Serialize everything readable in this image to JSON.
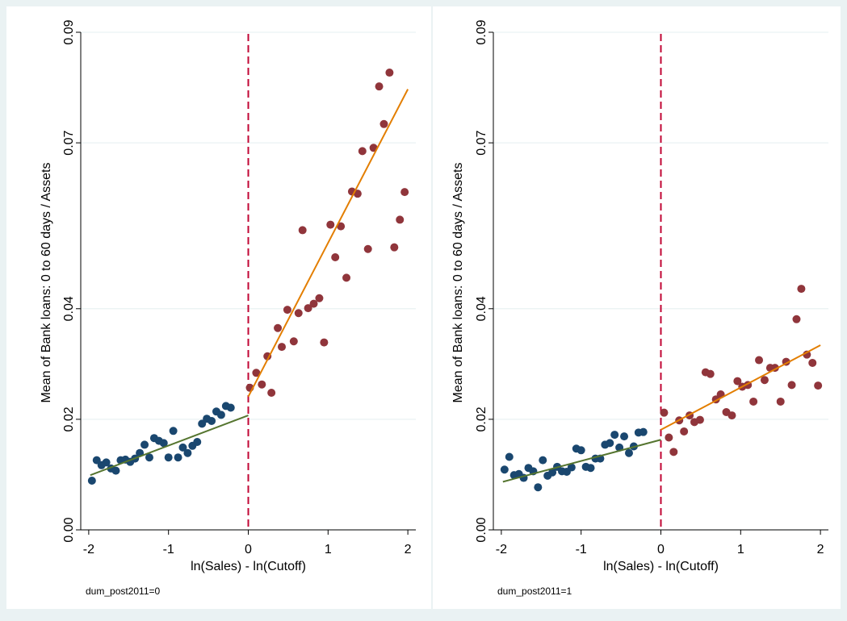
{
  "chart_data": [
    {
      "type": "scatter",
      "panel_label": "dum_post2011=0",
      "xlabel": "ln(Sales) - ln(Cutoff)",
      "ylabel": "Mean of Bank loans: 0 to 60 days / Assets",
      "xlim": [
        -2.1,
        2.1
      ],
      "ylim": [
        0,
        0.09
      ],
      "xticks": [
        -2,
        -1,
        0,
        1,
        2
      ],
      "yticks": [
        0,
        0.02,
        0.04,
        0.07,
        0.09
      ],
      "ytick_labels": [
        "0.00",
        "0.02",
        "0.04",
        "0.07",
        "0.09"
      ],
      "cutoff_x": 0,
      "grid": true,
      "colors": {
        "left": "#1a476f",
        "right": "#90353b",
        "left_fit": "#55752f",
        "right_fit": "#e37e00",
        "cutoff": "#c10534"
      },
      "series": [
        {
          "side": "left",
          "points": [
            [
              -1.96,
              0.0089
            ],
            [
              -1.9,
              0.0126
            ],
            [
              -1.84,
              0.0117
            ],
            [
              -1.78,
              0.0122
            ],
            [
              -1.72,
              0.0111
            ],
            [
              -1.66,
              0.0107
            ],
            [
              -1.6,
              0.0126
            ],
            [
              -1.54,
              0.0127
            ],
            [
              -1.48,
              0.0123
            ],
            [
              -1.42,
              0.0129
            ],
            [
              -1.36,
              0.0139
            ],
            [
              -1.3,
              0.0154
            ],
            [
              -1.24,
              0.0131
            ],
            [
              -1.18,
              0.0166
            ],
            [
              -1.12,
              0.0161
            ],
            [
              -1.06,
              0.0157
            ],
            [
              -1.0,
              0.0131
            ],
            [
              -0.94,
              0.0179
            ],
            [
              -0.88,
              0.0131
            ],
            [
              -0.82,
              0.0149
            ],
            [
              -0.76,
              0.0139
            ],
            [
              -0.7,
              0.0152
            ],
            [
              -0.64,
              0.0159
            ],
            [
              -0.58,
              0.0192
            ],
            [
              -0.52,
              0.0201
            ],
            [
              -0.46,
              0.0197
            ],
            [
              -0.4,
              0.0214
            ],
            [
              -0.34,
              0.0208
            ],
            [
              -0.28,
              0.0224
            ],
            [
              -0.22,
              0.0221
            ]
          ],
          "fit": [
            [
              -1.98,
              0.0099
            ],
            [
              0,
              0.0207
            ]
          ]
        },
        {
          "side": "right",
          "points": [
            [
              0.02,
              0.0257
            ],
            [
              0.1,
              0.0284
            ],
            [
              0.17,
              0.0263
            ],
            [
              0.24,
              0.0314
            ],
            [
              0.29,
              0.0248
            ],
            [
              0.37,
              0.0365
            ],
            [
              0.42,
              0.0331
            ],
            [
              0.49,
              0.0398
            ],
            [
              0.57,
              0.0341
            ],
            [
              0.63,
              0.0392
            ],
            [
              0.68,
              0.0542
            ],
            [
              0.75,
              0.0401
            ],
            [
              0.82,
              0.0409
            ],
            [
              0.89,
              0.0419
            ],
            [
              0.95,
              0.0339
            ],
            [
              1.03,
              0.0552
            ],
            [
              1.09,
              0.0493
            ],
            [
              1.16,
              0.0549
            ],
            [
              1.23,
              0.0456
            ],
            [
              1.3,
              0.0612
            ],
            [
              1.37,
              0.0608
            ],
            [
              1.43,
              0.0685
            ],
            [
              1.5,
              0.0508
            ],
            [
              1.57,
              0.0691
            ],
            [
              1.64,
              0.0802
            ],
            [
              1.7,
              0.0734
            ],
            [
              1.77,
              0.0827
            ],
            [
              1.83,
              0.0511
            ],
            [
              1.9,
              0.0561
            ],
            [
              1.96,
              0.0611
            ]
          ],
          "fit": [
            [
              0,
              0.0241
            ],
            [
              2,
              0.0797
            ]
          ]
        }
      ]
    },
    {
      "type": "scatter",
      "panel_label": "dum_post2011=1",
      "xlabel": "ln(Sales) - ln(Cutoff)",
      "ylabel": "Mean of Bank loans: 0 to 60 days / Assets",
      "xlim": [
        -2.1,
        2.1
      ],
      "ylim": [
        0,
        0.09
      ],
      "xticks": [
        -2,
        -1,
        0,
        1,
        2
      ],
      "yticks": [
        0,
        0.02,
        0.04,
        0.07,
        0.09
      ],
      "ytick_labels": [
        "0.00",
        "0.02",
        "0.04",
        "0.07",
        "0.09"
      ],
      "cutoff_x": 0,
      "grid": true,
      "colors": {
        "left": "#1a476f",
        "right": "#90353b",
        "left_fit": "#55752f",
        "right_fit": "#e37e00",
        "cutoff": "#c10534"
      },
      "series": [
        {
          "side": "left",
          "points": [
            [
              -1.96,
              0.0109
            ],
            [
              -1.9,
              0.0132
            ],
            [
              -1.84,
              0.0099
            ],
            [
              -1.78,
              0.0101
            ],
            [
              -1.72,
              0.0094
            ],
            [
              -1.66,
              0.0112
            ],
            [
              -1.6,
              0.0106
            ],
            [
              -1.54,
              0.0077
            ],
            [
              -1.48,
              0.0126
            ],
            [
              -1.42,
              0.0098
            ],
            [
              -1.36,
              0.0104
            ],
            [
              -1.3,
              0.0114
            ],
            [
              -1.24,
              0.0106
            ],
            [
              -1.18,
              0.0105
            ],
            [
              -1.12,
              0.0113
            ],
            [
              -1.06,
              0.0147
            ],
            [
              -1.0,
              0.0144
            ],
            [
              -0.94,
              0.0114
            ],
            [
              -0.88,
              0.0112
            ],
            [
              -0.82,
              0.0129
            ],
            [
              -0.76,
              0.0129
            ],
            [
              -0.7,
              0.0154
            ],
            [
              -0.64,
              0.0157
            ],
            [
              -0.58,
              0.0172
            ],
            [
              -0.52,
              0.0149
            ],
            [
              -0.46,
              0.0169
            ],
            [
              -0.4,
              0.0139
            ],
            [
              -0.34,
              0.0151
            ],
            [
              -0.28,
              0.0176
            ],
            [
              -0.22,
              0.0177
            ]
          ],
          "fit": [
            [
              -1.98,
              0.0087
            ],
            [
              0,
              0.0163
            ]
          ]
        },
        {
          "side": "right",
          "points": [
            [
              0.04,
              0.0212
            ],
            [
              0.1,
              0.0167
            ],
            [
              0.16,
              0.0141
            ],
            [
              0.23,
              0.0198
            ],
            [
              0.29,
              0.0178
            ],
            [
              0.36,
              0.0207
            ],
            [
              0.42,
              0.0195
            ],
            [
              0.49,
              0.0199
            ],
            [
              0.56,
              0.0285
            ],
            [
              0.62,
              0.0282
            ],
            [
              0.69,
              0.0236
            ],
            [
              0.75,
              0.0245
            ],
            [
              0.82,
              0.0213
            ],
            [
              0.89,
              0.0207
            ],
            [
              0.96,
              0.0269
            ],
            [
              1.02,
              0.0259
            ],
            [
              1.09,
              0.0262
            ],
            [
              1.16,
              0.0232
            ],
            [
              1.23,
              0.0307
            ],
            [
              1.3,
              0.0271
            ],
            [
              1.37,
              0.0293
            ],
            [
              1.43,
              0.0293
            ],
            [
              1.5,
              0.0232
            ],
            [
              1.57,
              0.0304
            ],
            [
              1.64,
              0.0262
            ],
            [
              1.7,
              0.0381
            ],
            [
              1.76,
              0.0436
            ],
            [
              1.83,
              0.0317
            ],
            [
              1.9,
              0.0302
            ],
            [
              1.97,
              0.0261
            ]
          ],
          "fit": [
            [
              0,
              0.0181
            ],
            [
              2,
              0.0334
            ]
          ]
        }
      ]
    }
  ]
}
